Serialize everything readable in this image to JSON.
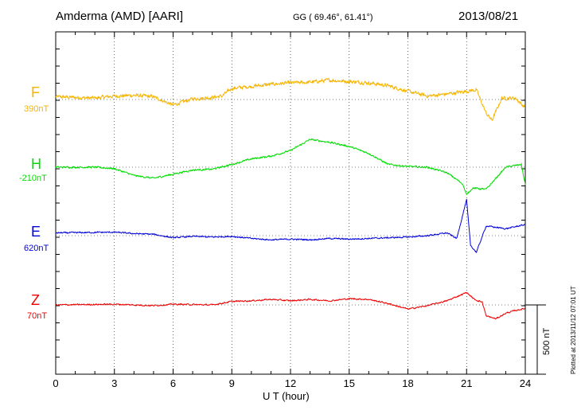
{
  "header": {
    "station": "Amderma (AMD)  [AARI]",
    "coords": "GG ( 69.46°,  61.41°)",
    "date": "2013/08/21"
  },
  "footer_note": "Plotted at 2013/11/12 07:01  UT",
  "scale_bar_label": "500 nT",
  "chart_data": {
    "type": "line",
    "title": "Amderma (AMD)  [AARI]",
    "xlabel": "U T (hour)",
    "ylabel": "",
    "xlim": [
      0,
      24
    ],
    "x_ticks": [
      "0",
      "3",
      "6",
      "9",
      "12",
      "15",
      "18",
      "21",
      "24"
    ],
    "grid": true,
    "scale_nT": 500,
    "series": [
      {
        "name": "F",
        "baseline_label": "390nT",
        "color": "#f5b400",
        "baseline_nT": 390,
        "noise_nT": 20,
        "points": [
          [
            0,
            20
          ],
          [
            2,
            10
          ],
          [
            3,
            25
          ],
          [
            4,
            30
          ],
          [
            5,
            20
          ],
          [
            6,
            -40
          ],
          [
            7,
            5
          ],
          [
            8,
            15
          ],
          [
            8.5,
            25
          ],
          [
            9,
            80
          ],
          [
            10,
            95
          ],
          [
            11,
            110
          ],
          [
            12,
            120
          ],
          [
            13,
            125
          ],
          [
            14,
            140
          ],
          [
            15,
            130
          ],
          [
            16,
            120
          ],
          [
            17,
            100
          ],
          [
            18,
            60
          ],
          [
            19,
            25
          ],
          [
            20,
            40
          ],
          [
            21,
            60
          ],
          [
            21.5,
            70
          ],
          [
            22,
            -100
          ],
          [
            22.3,
            -150
          ],
          [
            22.8,
            10
          ],
          [
            23.5,
            10
          ],
          [
            24,
            -60
          ]
        ]
      },
      {
        "name": "H",
        "baseline_label": "-210nT",
        "color": "#00dd00",
        "baseline_nT": -210,
        "noise_nT": 10,
        "points": [
          [
            0,
            0
          ],
          [
            2,
            0
          ],
          [
            3,
            -10
          ],
          [
            4,
            -60
          ],
          [
            5,
            -80
          ],
          [
            6,
            -50
          ],
          [
            7,
            -20
          ],
          [
            8,
            -15
          ],
          [
            9,
            20
          ],
          [
            10,
            60
          ],
          [
            11,
            80
          ],
          [
            12,
            120
          ],
          [
            13,
            200
          ],
          [
            14,
            180
          ],
          [
            15,
            150
          ],
          [
            16,
            100
          ],
          [
            17,
            20
          ],
          [
            18,
            5
          ],
          [
            19,
            0
          ],
          [
            20,
            -40
          ],
          [
            20.8,
            -120
          ],
          [
            21,
            -200
          ],
          [
            21.3,
            -150
          ],
          [
            22,
            -160
          ],
          [
            23,
            0
          ],
          [
            23.8,
            20
          ],
          [
            24,
            -130
          ]
        ]
      },
      {
        "name": "E",
        "baseline_label": "620nT",
        "color": "#0000dd",
        "baseline_nT": 620,
        "noise_nT": 8,
        "points": [
          [
            0,
            20
          ],
          [
            3,
            25
          ],
          [
            4,
            15
          ],
          [
            5,
            10
          ],
          [
            6,
            -15
          ],
          [
            7,
            -5
          ],
          [
            8,
            -10
          ],
          [
            9,
            -5
          ],
          [
            10,
            -20
          ],
          [
            11,
            -30
          ],
          [
            12,
            -25
          ],
          [
            13,
            -30
          ],
          [
            14,
            -20
          ],
          [
            15,
            -25
          ],
          [
            16,
            -20
          ],
          [
            17,
            -15
          ],
          [
            18,
            -10
          ],
          [
            19,
            0
          ],
          [
            20,
            20
          ],
          [
            20.5,
            -20
          ],
          [
            20.8,
            150
          ],
          [
            21,
            260
          ],
          [
            21.2,
            -70
          ],
          [
            21.5,
            -120
          ],
          [
            22,
            70
          ],
          [
            23,
            50
          ],
          [
            24,
            80
          ]
        ]
      },
      {
        "name": "Z",
        "baseline_label": "70nT",
        "color": "#ee0000",
        "baseline_nT": 70,
        "noise_nT": 8,
        "points": [
          [
            0,
            0
          ],
          [
            3,
            5
          ],
          [
            5,
            -5
          ],
          [
            6,
            5
          ],
          [
            8,
            0
          ],
          [
            9,
            25
          ],
          [
            10,
            30
          ],
          [
            11,
            40
          ],
          [
            12,
            30
          ],
          [
            13,
            40
          ],
          [
            14,
            30
          ],
          [
            15,
            45
          ],
          [
            16,
            40
          ],
          [
            17,
            10
          ],
          [
            18,
            -30
          ],
          [
            19,
            -5
          ],
          [
            20,
            30
          ],
          [
            20.5,
            60
          ],
          [
            21,
            90
          ],
          [
            21.4,
            40
          ],
          [
            21.8,
            20
          ],
          [
            22,
            -80
          ],
          [
            22.5,
            -100
          ],
          [
            23,
            -60
          ],
          [
            23.5,
            -40
          ],
          [
            24,
            -25
          ]
        ]
      }
    ]
  }
}
